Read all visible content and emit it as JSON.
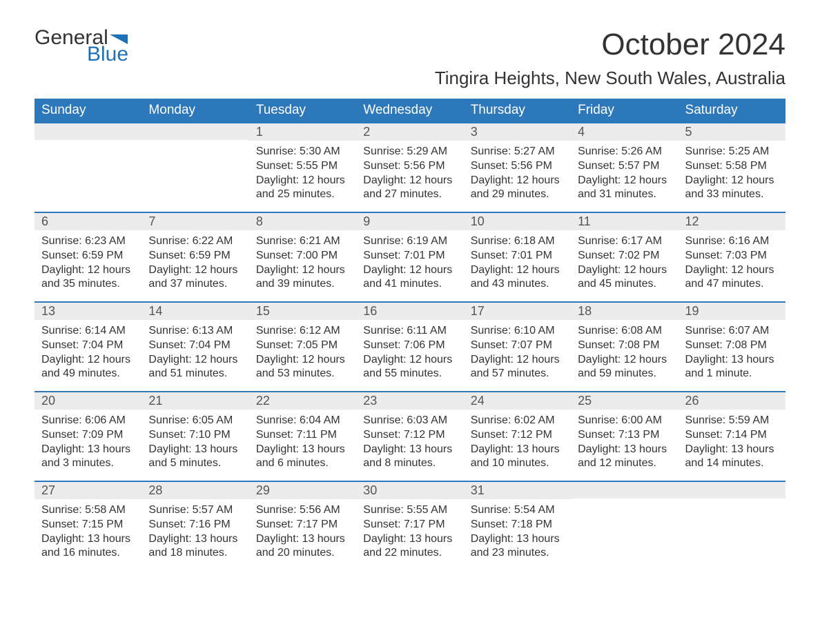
{
  "logo": {
    "general": "General",
    "blue": "Blue",
    "flag_color": "#1d71b8"
  },
  "title": "October 2024",
  "location": "Tingira Heights, New South Wales, Australia",
  "weekdays": [
    "Sunday",
    "Monday",
    "Tuesday",
    "Wednesday",
    "Thursday",
    "Friday",
    "Saturday"
  ],
  "colors": {
    "header_bg": "#2d77bb",
    "header_text": "#ffffff",
    "daynum_bg": "#ececec",
    "daynum_border": "#2d77bb",
    "body_text": "#333333",
    "logo_blue": "#1d71b8"
  },
  "weeks": [
    [
      {
        "day": "",
        "sunrise": "",
        "sunset": "",
        "daylight": ""
      },
      {
        "day": "",
        "sunrise": "",
        "sunset": "",
        "daylight": ""
      },
      {
        "day": "1",
        "sunrise": "Sunrise: 5:30 AM",
        "sunset": "Sunset: 5:55 PM",
        "daylight": "Daylight: 12 hours and 25 minutes."
      },
      {
        "day": "2",
        "sunrise": "Sunrise: 5:29 AM",
        "sunset": "Sunset: 5:56 PM",
        "daylight": "Daylight: 12 hours and 27 minutes."
      },
      {
        "day": "3",
        "sunrise": "Sunrise: 5:27 AM",
        "sunset": "Sunset: 5:56 PM",
        "daylight": "Daylight: 12 hours and 29 minutes."
      },
      {
        "day": "4",
        "sunrise": "Sunrise: 5:26 AM",
        "sunset": "Sunset: 5:57 PM",
        "daylight": "Daylight: 12 hours and 31 minutes."
      },
      {
        "day": "5",
        "sunrise": "Sunrise: 5:25 AM",
        "sunset": "Sunset: 5:58 PM",
        "daylight": "Daylight: 12 hours and 33 minutes."
      }
    ],
    [
      {
        "day": "6",
        "sunrise": "Sunrise: 6:23 AM",
        "sunset": "Sunset: 6:59 PM",
        "daylight": "Daylight: 12 hours and 35 minutes."
      },
      {
        "day": "7",
        "sunrise": "Sunrise: 6:22 AM",
        "sunset": "Sunset: 6:59 PM",
        "daylight": "Daylight: 12 hours and 37 minutes."
      },
      {
        "day": "8",
        "sunrise": "Sunrise: 6:21 AM",
        "sunset": "Sunset: 7:00 PM",
        "daylight": "Daylight: 12 hours and 39 minutes."
      },
      {
        "day": "9",
        "sunrise": "Sunrise: 6:19 AM",
        "sunset": "Sunset: 7:01 PM",
        "daylight": "Daylight: 12 hours and 41 minutes."
      },
      {
        "day": "10",
        "sunrise": "Sunrise: 6:18 AM",
        "sunset": "Sunset: 7:01 PM",
        "daylight": "Daylight: 12 hours and 43 minutes."
      },
      {
        "day": "11",
        "sunrise": "Sunrise: 6:17 AM",
        "sunset": "Sunset: 7:02 PM",
        "daylight": "Daylight: 12 hours and 45 minutes."
      },
      {
        "day": "12",
        "sunrise": "Sunrise: 6:16 AM",
        "sunset": "Sunset: 7:03 PM",
        "daylight": "Daylight: 12 hours and 47 minutes."
      }
    ],
    [
      {
        "day": "13",
        "sunrise": "Sunrise: 6:14 AM",
        "sunset": "Sunset: 7:04 PM",
        "daylight": "Daylight: 12 hours and 49 minutes."
      },
      {
        "day": "14",
        "sunrise": "Sunrise: 6:13 AM",
        "sunset": "Sunset: 7:04 PM",
        "daylight": "Daylight: 12 hours and 51 minutes."
      },
      {
        "day": "15",
        "sunrise": "Sunrise: 6:12 AM",
        "sunset": "Sunset: 7:05 PM",
        "daylight": "Daylight: 12 hours and 53 minutes."
      },
      {
        "day": "16",
        "sunrise": "Sunrise: 6:11 AM",
        "sunset": "Sunset: 7:06 PM",
        "daylight": "Daylight: 12 hours and 55 minutes."
      },
      {
        "day": "17",
        "sunrise": "Sunrise: 6:10 AM",
        "sunset": "Sunset: 7:07 PM",
        "daylight": "Daylight: 12 hours and 57 minutes."
      },
      {
        "day": "18",
        "sunrise": "Sunrise: 6:08 AM",
        "sunset": "Sunset: 7:08 PM",
        "daylight": "Daylight: 12 hours and 59 minutes."
      },
      {
        "day": "19",
        "sunrise": "Sunrise: 6:07 AM",
        "sunset": "Sunset: 7:08 PM",
        "daylight": "Daylight: 13 hours and 1 minute."
      }
    ],
    [
      {
        "day": "20",
        "sunrise": "Sunrise: 6:06 AM",
        "sunset": "Sunset: 7:09 PM",
        "daylight": "Daylight: 13 hours and 3 minutes."
      },
      {
        "day": "21",
        "sunrise": "Sunrise: 6:05 AM",
        "sunset": "Sunset: 7:10 PM",
        "daylight": "Daylight: 13 hours and 5 minutes."
      },
      {
        "day": "22",
        "sunrise": "Sunrise: 6:04 AM",
        "sunset": "Sunset: 7:11 PM",
        "daylight": "Daylight: 13 hours and 6 minutes."
      },
      {
        "day": "23",
        "sunrise": "Sunrise: 6:03 AM",
        "sunset": "Sunset: 7:12 PM",
        "daylight": "Daylight: 13 hours and 8 minutes."
      },
      {
        "day": "24",
        "sunrise": "Sunrise: 6:02 AM",
        "sunset": "Sunset: 7:12 PM",
        "daylight": "Daylight: 13 hours and 10 minutes."
      },
      {
        "day": "25",
        "sunrise": "Sunrise: 6:00 AM",
        "sunset": "Sunset: 7:13 PM",
        "daylight": "Daylight: 13 hours and 12 minutes."
      },
      {
        "day": "26",
        "sunrise": "Sunrise: 5:59 AM",
        "sunset": "Sunset: 7:14 PM",
        "daylight": "Daylight: 13 hours and 14 minutes."
      }
    ],
    [
      {
        "day": "27",
        "sunrise": "Sunrise: 5:58 AM",
        "sunset": "Sunset: 7:15 PM",
        "daylight": "Daylight: 13 hours and 16 minutes."
      },
      {
        "day": "28",
        "sunrise": "Sunrise: 5:57 AM",
        "sunset": "Sunset: 7:16 PM",
        "daylight": "Daylight: 13 hours and 18 minutes."
      },
      {
        "day": "29",
        "sunrise": "Sunrise: 5:56 AM",
        "sunset": "Sunset: 7:17 PM",
        "daylight": "Daylight: 13 hours and 20 minutes."
      },
      {
        "day": "30",
        "sunrise": "Sunrise: 5:55 AM",
        "sunset": "Sunset: 7:17 PM",
        "daylight": "Daylight: 13 hours and 22 minutes."
      },
      {
        "day": "31",
        "sunrise": "Sunrise: 5:54 AM",
        "sunset": "Sunset: 7:18 PM",
        "daylight": "Daylight: 13 hours and 23 minutes."
      },
      {
        "day": "",
        "sunrise": "",
        "sunset": "",
        "daylight": ""
      },
      {
        "day": "",
        "sunrise": "",
        "sunset": "",
        "daylight": ""
      }
    ]
  ]
}
